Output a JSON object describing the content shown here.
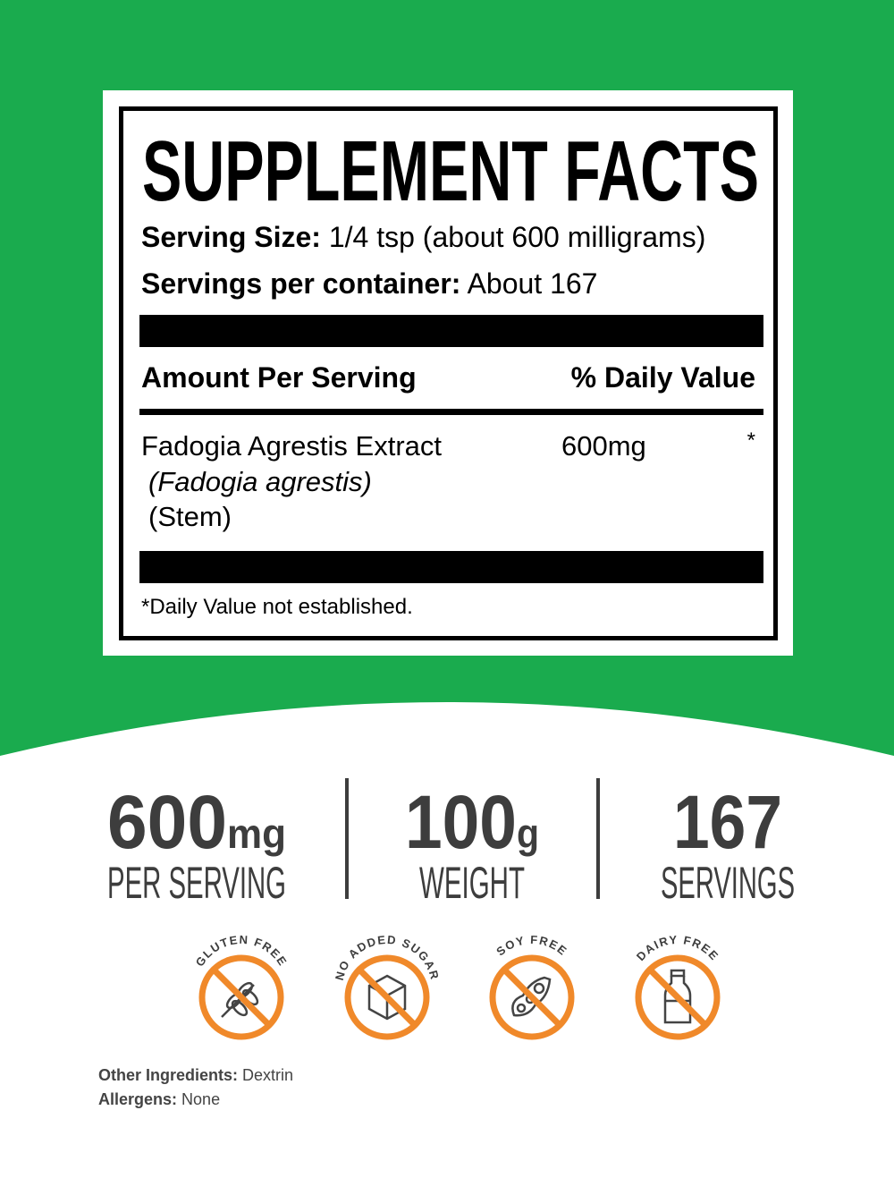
{
  "colors": {
    "background_green": "#1aab4e",
    "badge_orange": "#f0892a",
    "stat_text": "#3d3d3d"
  },
  "label": {
    "title": "SUPPLEMENT FACTS",
    "serving_size_label": "Serving Size:",
    "serving_size_value": "1/4 tsp (about 600 milligrams)",
    "servings_label": "Servings per container:",
    "servings_value": "About 167",
    "amount_header": "Amount Per Serving",
    "dv_header": "% Daily Value",
    "ingredient": {
      "name": "Fadogia Agrestis Extract",
      "latin": "(Fadogia agrestis)",
      "part": "(Stem)",
      "amount": "600mg",
      "dv": "*"
    },
    "footnote": "*Daily Value not established."
  },
  "stats": [
    {
      "value": "600",
      "unit": "mg",
      "label": "PER SERVING"
    },
    {
      "value": "100",
      "unit": "g",
      "label": "WEIGHT"
    },
    {
      "value": "167",
      "unit": "",
      "label": "SERVINGS"
    }
  ],
  "badges": [
    {
      "label": "GLUTEN FREE",
      "icon": "wheat-icon"
    },
    {
      "label": "NO ADDED SUGAR",
      "icon": "sugar-cube-icon"
    },
    {
      "label": "SOY FREE",
      "icon": "soybean-icon"
    },
    {
      "label": "DAIRY FREE",
      "icon": "milk-bottle-icon"
    }
  ],
  "footer": {
    "other_label": "Other Ingredients:",
    "other_value": "Dextrin",
    "allergens_label": "Allergens:",
    "allergens_value": "None"
  }
}
